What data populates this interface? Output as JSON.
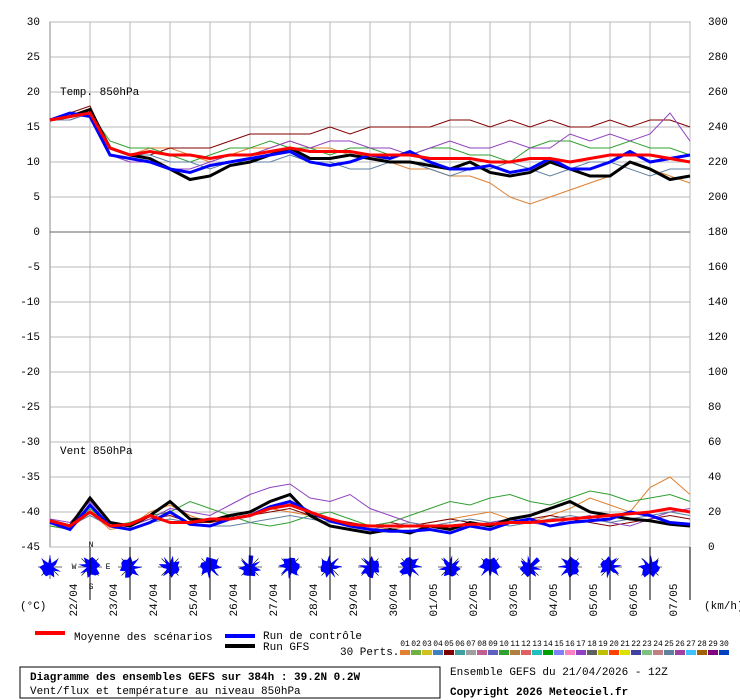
{
  "chart_data": {
    "type": "ensemble-line",
    "title": "Diagramme des ensembles GEFS sur 384h : 39.2N 0.2W",
    "subtitle": "Vent/flux et température au niveau 850hPa",
    "run_info": "Ensemble GEFS du 21/04/2026 - 12Z",
    "copyright": "Copyright 2026 Meteociel.fr",
    "temp_label": "Temp. 850hPa",
    "wind_label": "Vent 850hPa",
    "y_unit": "(°C)",
    "y2_unit": "(km/h)",
    "compass": [
      "N",
      "W",
      "E",
      "S"
    ],
    "perts_label": "30 Perts.",
    "grid": true,
    "ylim": [
      -45,
      30
    ],
    "yticks": [
      30,
      25,
      20,
      15,
      10,
      5,
      0,
      -5,
      -10,
      -15,
      -20,
      -25,
      -30,
      -35,
      -40,
      -45
    ],
    "y2lim": [
      0,
      300
    ],
    "y2ticks": [
      300,
      280,
      260,
      240,
      220,
      200,
      180,
      160,
      140,
      120,
      100,
      80,
      60,
      40,
      20,
      0
    ],
    "xlim": [
      0,
      384
    ],
    "xticks": [
      {
        "value": 12,
        "label": "22/04"
      },
      {
        "value": 36,
        "label": "23/04"
      },
      {
        "value": 60,
        "label": "24/04"
      },
      {
        "value": 84,
        "label": "25/04"
      },
      {
        "value": 108,
        "label": "26/04"
      },
      {
        "value": 132,
        "label": "27/04"
      },
      {
        "value": 156,
        "label": "28/04"
      },
      {
        "value": 180,
        "label": "29/04"
      },
      {
        "value": 204,
        "label": "30/04"
      },
      {
        "value": 228,
        "label": "01/05"
      },
      {
        "value": 252,
        "label": "02/05"
      },
      {
        "value": 276,
        "label": "03/05"
      },
      {
        "value": 300,
        "label": "04/05"
      },
      {
        "value": 324,
        "label": "05/05"
      },
      {
        "value": 348,
        "label": "06/05"
      },
      {
        "value": 372,
        "label": "07/05"
      }
    ],
    "x": [
      0,
      12,
      24,
      36,
      48,
      60,
      72,
      84,
      96,
      108,
      120,
      132,
      144,
      156,
      168,
      180,
      192,
      204,
      216,
      228,
      240,
      252,
      264,
      276,
      288,
      300,
      312,
      324,
      336,
      348,
      360,
      372,
      384
    ],
    "perturbations": [
      {
        "name": "01",
        "color": "#e08030",
        "temp_values": [
          16,
          16,
          17,
          12,
          11,
          12,
          12,
          11,
          10,
          11,
          12,
          12,
          13,
          12,
          12,
          11,
          11,
          10,
          9,
          9,
          8,
          8,
          7,
          5,
          4,
          5,
          6,
          7,
          8,
          10,
          9,
          8,
          7
        ],
        "wind_values": [
          12,
          10,
          20,
          10,
          12,
          20,
          24,
          18,
          14,
          16,
          18,
          22,
          20,
          18,
          16,
          14,
          12,
          10,
          12,
          14,
          16,
          18,
          20,
          16,
          14,
          18,
          22,
          28,
          24,
          20,
          34,
          40,
          30
        ]
      },
      {
        "name": "02",
        "color": "#70b040"
      },
      {
        "name": "03",
        "color": "#d0c020"
      },
      {
        "name": "04",
        "color": "#4080c0"
      },
      {
        "name": "05",
        "color": "#800000",
        "temp_values": [
          16,
          17,
          18,
          12,
          11,
          11,
          12,
          12,
          12,
          13,
          14,
          14,
          14,
          14,
          15,
          14,
          15,
          15,
          15,
          15,
          16,
          16,
          15,
          16,
          15,
          16,
          15,
          15,
          16,
          15,
          16,
          16,
          15
        ],
        "wind_values": [
          15,
          12,
          20,
          14,
          12,
          16,
          18,
          14,
          14,
          16,
          18,
          20,
          22,
          18,
          16,
          14,
          12,
          14,
          12,
          14,
          16,
          14,
          12,
          14,
          16,
          18,
          16,
          14,
          12,
          14,
          16,
          18,
          16
        ]
      },
      {
        "name": "06",
        "color": "#40a0a0"
      },
      {
        "name": "07",
        "color": "#a0a0a0"
      },
      {
        "name": "08",
        "color": "#c06090"
      },
      {
        "name": "09",
        "color": "#6060c0"
      },
      {
        "name": "10",
        "color": "#30a030",
        "temp_values": [
          16,
          17,
          17,
          13,
          12,
          12,
          11,
          10,
          11,
          12,
          12,
          13,
          12,
          12,
          11,
          12,
          12,
          11,
          11,
          12,
          12,
          11,
          11,
          10,
          12,
          13,
          13,
          12,
          12,
          13,
          12,
          12,
          11
        ],
        "wind_values": [
          12,
          10,
          22,
          12,
          14,
          18,
          20,
          26,
          22,
          18,
          14,
          12,
          14,
          18,
          20,
          16,
          12,
          14,
          18,
          22,
          26,
          24,
          28,
          30,
          26,
          24,
          28,
          32,
          30,
          26,
          28,
          30,
          26
        ]
      },
      {
        "name": "11",
        "color": "#b08040"
      },
      {
        "name": "12",
        "color": "#e06060"
      },
      {
        "name": "13",
        "color": "#20c0c0"
      },
      {
        "name": "14",
        "color": "#00a000"
      },
      {
        "name": "15",
        "color": "#8080ff"
      },
      {
        "name": "16",
        "color": "#ff80c0"
      },
      {
        "name": "17",
        "color": "#9040c0",
        "temp_values": [
          16,
          16,
          17,
          11,
          10,
          10,
          9,
          9,
          10,
          11,
          11,
          12,
          13,
          12,
          13,
          13,
          12,
          12,
          11,
          12,
          13,
          12,
          12,
          13,
          12,
          12,
          14,
          13,
          14,
          13,
          14,
          17,
          13
        ],
        "wind_values": [
          16,
          14,
          26,
          14,
          12,
          16,
          22,
          20,
          18,
          24,
          30,
          34,
          36,
          28,
          26,
          30,
          22,
          18,
          14,
          12,
          10,
          12,
          14,
          16,
          14,
          12,
          16,
          18,
          14,
          12,
          16,
          20,
          22
        ]
      },
      {
        "name": "18",
        "color": "#606060"
      },
      {
        "name": "19",
        "color": "#c0c000"
      },
      {
        "name": "20",
        "color": "#ff4000"
      },
      {
        "name": "21",
        "color": "#e0e000"
      },
      {
        "name": "22",
        "color": "#4040a0"
      },
      {
        "name": "23",
        "color": "#80c080"
      },
      {
        "name": "24",
        "color": "#c08080"
      },
      {
        "name": "25",
        "color": "#6080a0",
        "temp_values": [
          16,
          16,
          17,
          12,
          11,
          11,
          10,
          10,
          9,
          10,
          10,
          10,
          11,
          10,
          10,
          9,
          9,
          10,
          10,
          9,
          8,
          9,
          9,
          10,
          9,
          8,
          9,
          10,
          10,
          9,
          8,
          9,
          9
        ],
        "wind_values": [
          14,
          12,
          18,
          12,
          10,
          14,
          16,
          14,
          12,
          12,
          14,
          16,
          18,
          16,
          14,
          12,
          10,
          12,
          14,
          12,
          14,
          16,
          14,
          12,
          14,
          16,
          18,
          16,
          14,
          16,
          18,
          20,
          18
        ]
      },
      {
        "name": "26",
        "color": "#a040a0"
      },
      {
        "name": "27",
        "color": "#40c0ff"
      },
      {
        "name": "28",
        "color": "#a06000"
      },
      {
        "name": "29",
        "color": "#800080"
      },
      {
        "name": "30",
        "color": "#0040c0"
      }
    ],
    "series": [
      {
        "name": "Moyenne des scénarios",
        "color": "#ff0000",
        "temp_values": [
          16,
          16.5,
          17,
          12,
          11,
          11.5,
          11,
          11,
          10.5,
          11,
          11,
          11.5,
          12,
          11.5,
          11.5,
          11.5,
          11,
          11,
          11,
          10.5,
          10.5,
          10.5,
          10,
          10,
          10.5,
          10.5,
          10,
          10.5,
          11,
          11,
          11,
          10.5,
          10
        ],
        "wind_values": [
          15,
          12,
          20,
          12,
          13,
          18,
          14,
          14,
          16,
          16,
          18,
          22,
          24,
          20,
          16,
          13,
          12,
          12,
          12,
          12,
          12,
          13,
          13,
          14,
          14,
          15,
          16,
          17,
          18,
          19,
          20,
          22,
          20
        ]
      },
      {
        "name": "Run de contrôle",
        "color": "#0000ff",
        "temp_values": [
          16,
          17,
          16.5,
          11,
          10.5,
          10,
          9,
          8.5,
          9.5,
          10,
          10.5,
          11,
          11.5,
          10,
          9.5,
          10,
          11,
          10.5,
          11.5,
          10,
          9,
          9,
          9.5,
          8.5,
          9,
          10.5,
          9,
          9,
          10,
          11.5,
          10,
          10.5,
          11
        ],
        "wind_values": [
          14,
          10,
          24,
          12,
          10,
          14,
          20,
          13,
          12,
          16,
          18,
          23,
          26,
          20,
          15,
          12,
          10,
          9,
          9,
          10,
          8,
          12,
          10,
          14,
          16,
          12,
          14,
          15,
          16,
          20,
          18,
          14,
          13
        ]
      },
      {
        "name": "Run GFS",
        "color": "#000000",
        "temp_values": [
          16,
          16.5,
          17.5,
          12,
          11,
          10.5,
          9,
          7.5,
          8,
          9.5,
          10,
          11,
          12,
          10.5,
          10.5,
          11,
          10.5,
          10,
          10,
          9.5,
          9,
          10,
          8.5,
          8,
          8.5,
          10,
          9,
          8,
          8,
          10,
          9,
          7.5,
          8
        ],
        "wind_values": [
          15,
          12,
          28,
          14,
          12,
          18,
          26,
          16,
          15,
          18,
          20,
          26,
          30,
          18,
          12,
          10,
          8,
          10,
          8,
          12,
          10,
          14,
          12,
          16,
          18,
          22,
          26,
          20,
          18,
          16,
          15,
          13,
          12
        ]
      }
    ]
  }
}
